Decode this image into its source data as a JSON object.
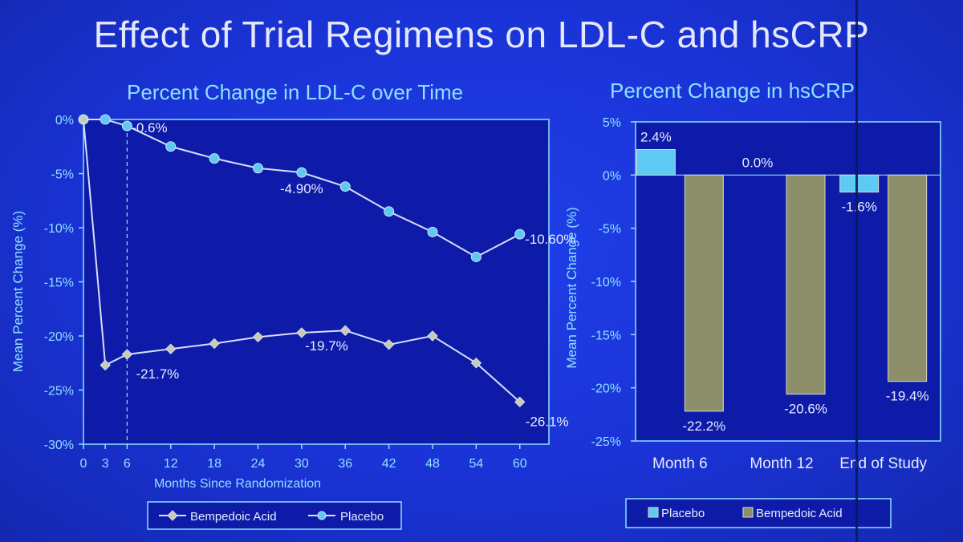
{
  "slide_title": "Effect of Trial Regimens on LDL-C and hsCRP",
  "colors": {
    "background": "#1a33d6",
    "plot_area": "#0d1ba8",
    "axis": "#8fe0ff",
    "line_series": "#d7defa",
    "placebo_bar": "#5ec9f2",
    "bempedoic_bar": "#8c8f6a"
  },
  "chart_data": [
    {
      "type": "line",
      "title": "Percent Change in LDL-C over Time",
      "xlabel": "Months Since Randomization",
      "ylabel": "Mean Percent Change (%)",
      "xlim": [
        0,
        64
      ],
      "ylim": [
        -30,
        0
      ],
      "x_ticks": [
        0,
        3,
        6,
        12,
        18,
        24,
        30,
        36,
        42,
        48,
        54,
        60
      ],
      "y_ticks": [
        "0%",
        "-5%",
        "-10%",
        "-15%",
        "-20%",
        "-25%",
        "-30%"
      ],
      "y_tick_values": [
        0,
        -5,
        -10,
        -15,
        -20,
        -25,
        -30
      ],
      "reference_line_x": 6,
      "series": [
        {
          "name": "Placebo",
          "marker": "circle",
          "x": [
            0,
            3,
            6,
            12,
            18,
            24,
            30,
            36,
            42,
            48,
            54,
            60
          ],
          "y": [
            0,
            0,
            -0.6,
            -2.5,
            -3.6,
            -4.5,
            -4.9,
            -6.2,
            -8.5,
            -10.4,
            -12.7,
            -10.6
          ]
        },
        {
          "name": "Bempedoic Acid",
          "marker": "diamond",
          "x": [
            0,
            3,
            6,
            12,
            18,
            24,
            30,
            36,
            42,
            48,
            54,
            60
          ],
          "y": [
            0,
            -22.7,
            -21.7,
            -21.2,
            -20.7,
            -20.1,
            -19.7,
            -19.5,
            -20.8,
            -20.0,
            -22.5,
            -26.1
          ]
        }
      ],
      "annotations": [
        {
          "text": "-0.6%",
          "x": 6,
          "y": -0.6
        },
        {
          "text": "-4.90%",
          "x": 30,
          "y": -4.9
        },
        {
          "text": "-10.60%",
          "x": 60,
          "y": -10.6
        },
        {
          "text": "-21.7%",
          "x": 6,
          "y": -21.7
        },
        {
          "text": "-19.7%",
          "x": 30,
          "y": -19.7
        },
        {
          "text": "-26.1%",
          "x": 60,
          "y": -26.1
        }
      ],
      "legend": [
        "Bempedoic Acid",
        "Placebo"
      ],
      "legend_position": "bottom",
      "grid": false
    },
    {
      "type": "bar",
      "title": "Percent Change in hsCRP",
      "xlabel": "",
      "ylabel": "Mean Percent Change (%)",
      "categories": [
        "Month 6",
        "Month 12",
        "End of Study"
      ],
      "ylim": [
        -25,
        5
      ],
      "y_ticks": [
        "5%",
        "0%",
        "-5%",
        "-10%",
        "-15%",
        "-20%",
        "-25%"
      ],
      "y_tick_values": [
        5,
        0,
        -5,
        -10,
        -15,
        -20,
        -25
      ],
      "series": [
        {
          "name": "Placebo",
          "values": [
            2.4,
            0.0,
            -1.6
          ],
          "labels": [
            "2.4%",
            "0.0%",
            "-1.6%"
          ]
        },
        {
          "name": "Bempedoic Acid",
          "values": [
            -22.2,
            -20.6,
            -19.4
          ],
          "labels": [
            "-22.2%",
            "-20.6%",
            "-19.4%"
          ]
        }
      ],
      "legend": [
        "Placebo",
        "Bempedoic Acid"
      ],
      "legend_position": "bottom",
      "grid": false
    }
  ]
}
